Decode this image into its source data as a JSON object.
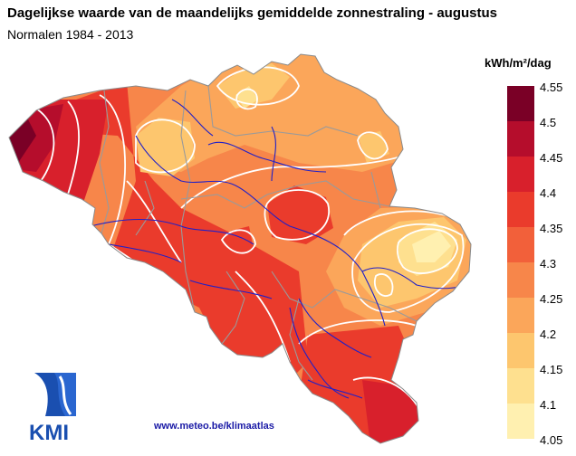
{
  "header": {
    "title": "Dagelijkse waarde van de maandelijks gemiddelde zonnestraling - augustus",
    "subtitle": "Normalen 1984 - 2013"
  },
  "legend": {
    "unit": "kWh/m²/dag",
    "labels": [
      "4.55",
      "4.5",
      "4.45",
      "4.4",
      "4.35",
      "4.3",
      "4.25",
      "4.2",
      "4.15",
      "4.1",
      "4.05"
    ],
    "colors": [
      "#7a0026",
      "#b50d2c",
      "#d8202c",
      "#ea3b2c",
      "#f2603a",
      "#f7864a",
      "#fba65a",
      "#fdc66e",
      "#fee08f",
      "#fff0b0",
      "#ffffd6"
    ]
  },
  "footer": {
    "url": "www.meteo.be/klimaatlas",
    "logo_text": "KMI"
  },
  "colors": {
    "river": "#2020c8",
    "border": "#9a9a9a",
    "contour": "#ffffff"
  }
}
